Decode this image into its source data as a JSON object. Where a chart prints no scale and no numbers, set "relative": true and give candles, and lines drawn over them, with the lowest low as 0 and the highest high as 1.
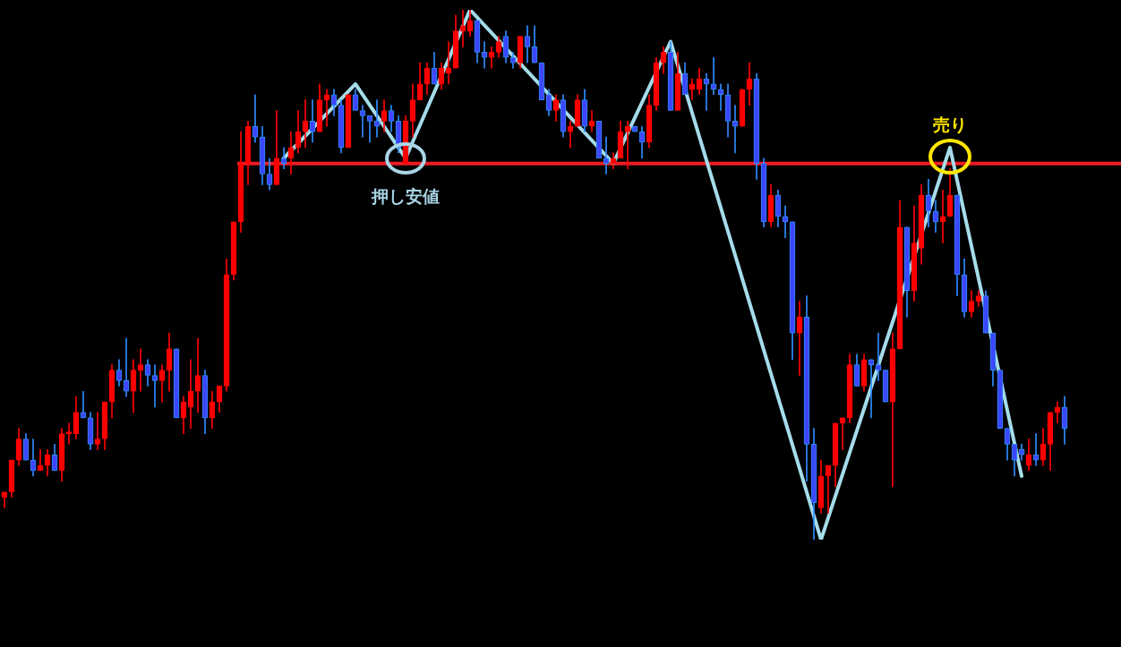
{
  "chart_data": {
    "type": "candlestick",
    "relative": true,
    "legend": false,
    "grid": false,
    "tick_labels": false,
    "categories": [
      null,
      null,
      null,
      null,
      null,
      null,
      null,
      null,
      null,
      null,
      null,
      null,
      null,
      null,
      null,
      null,
      null,
      null,
      null,
      null,
      null,
      null,
      null,
      null,
      null,
      null,
      null,
      null,
      null,
      null,
      null,
      null,
      null,
      null,
      null,
      null,
      null,
      null,
      null,
      null,
      null,
      null,
      null,
      null,
      null,
      null,
      null,
      null,
      null,
      null,
      null,
      null,
      null,
      null,
      null,
      null,
      null,
      null,
      null,
      null,
      null,
      null,
      null,
      null,
      null,
      null,
      null,
      null,
      null,
      null,
      null,
      null,
      null,
      null,
      null,
      null,
      null,
      null,
      null,
      null,
      null,
      null,
      null,
      null,
      null,
      null,
      null,
      null,
      null,
      null,
      null,
      null,
      null,
      null,
      null,
      null,
      null,
      null,
      null,
      null,
      null,
      null,
      null,
      null,
      null,
      null,
      null,
      null,
      null,
      null,
      null,
      null,
      null,
      null,
      null,
      null,
      null,
      null,
      null,
      null,
      null,
      null,
      null,
      null,
      null,
      null,
      null,
      null,
      null,
      null,
      null,
      null,
      null,
      null,
      null,
      null,
      null,
      null,
      null,
      null,
      null,
      null,
      null,
      null,
      null,
      null,
      null,
      null,
      null
    ],
    "ohlc": [
      [
        0.08,
        0.09,
        0.06,
        0.09
      ],
      [
        0.09,
        0.15,
        0.08,
        0.15
      ],
      [
        0.15,
        0.21,
        0.14,
        0.19
      ],
      [
        0.19,
        0.2,
        0.15,
        0.15
      ],
      [
        0.15,
        0.19,
        0.12,
        0.13
      ],
      [
        0.13,
        0.17,
        0.13,
        0.14
      ],
      [
        0.14,
        0.17,
        0.12,
        0.16
      ],
      [
        0.16,
        0.18,
        0.13,
        0.13
      ],
      [
        0.13,
        0.21,
        0.11,
        0.2
      ],
      [
        0.2,
        0.22,
        0.18,
        0.2
      ],
      [
        0.2,
        0.27,
        0.19,
        0.24
      ],
      [
        0.24,
        0.28,
        0.23,
        0.23
      ],
      [
        0.23,
        0.24,
        0.17,
        0.18
      ],
      [
        0.18,
        0.24,
        0.17,
        0.19
      ],
      [
        0.19,
        0.26,
        0.17,
        0.26
      ],
      [
        0.26,
        0.33,
        0.23,
        0.32
      ],
      [
        0.32,
        0.34,
        0.29,
        0.3
      ],
      [
        0.3,
        0.38,
        0.27,
        0.28
      ],
      [
        0.28,
        0.34,
        0.24,
        0.32
      ],
      [
        0.32,
        0.36,
        0.28,
        0.33
      ],
      [
        0.33,
        0.34,
        0.29,
        0.31
      ],
      [
        0.31,
        0.33,
        0.25,
        0.3
      ],
      [
        0.3,
        0.33,
        0.26,
        0.32
      ],
      [
        0.32,
        0.39,
        0.28,
        0.36
      ],
      [
        0.36,
        0.36,
        0.23,
        0.23
      ],
      [
        0.23,
        0.27,
        0.2,
        0.26
      ],
      [
        0.25,
        0.34,
        0.21,
        0.28
      ],
      [
        0.28,
        0.38,
        0.24,
        0.31
      ],
      [
        0.31,
        0.32,
        0.2,
        0.23
      ],
      [
        0.23,
        0.28,
        0.21,
        0.26
      ],
      [
        0.26,
        0.29,
        0.24,
        0.29
      ],
      [
        0.29,
        0.53,
        0.28,
        0.5
      ],
      [
        0.5,
        0.6,
        0.49,
        0.6
      ],
      [
        0.6,
        0.77,
        0.58,
        0.71
      ],
      [
        0.71,
        0.79,
        0.67,
        0.78
      ],
      [
        0.78,
        0.84,
        0.75,
        0.76
      ],
      [
        0.76,
        0.78,
        0.67,
        0.69
      ],
      [
        0.69,
        0.72,
        0.66,
        0.67
      ],
      [
        0.67,
        0.81,
        0.67,
        0.72
      ],
      [
        0.72,
        0.74,
        0.7,
        0.71
      ],
      [
        0.72,
        0.77,
        0.69,
        0.74
      ],
      [
        0.74,
        0.81,
        0.73,
        0.77
      ],
      [
        0.77,
        0.83,
        0.74,
        0.79
      ],
      [
        0.79,
        0.83,
        0.75,
        0.77
      ],
      [
        0.77,
        0.86,
        0.77,
        0.83
      ],
      [
        0.83,
        0.85,
        0.78,
        0.84
      ],
      [
        0.84,
        0.85,
        0.8,
        0.82
      ],
      [
        0.82,
        0.83,
        0.73,
        0.74
      ],
      [
        0.74,
        0.84,
        0.74,
        0.84
      ],
      [
        0.84,
        0.85,
        0.81,
        0.81
      ],
      [
        0.81,
        0.82,
        0.76,
        0.8
      ],
      [
        0.8,
        0.8,
        0.75,
        0.79
      ],
      [
        0.79,
        0.83,
        0.76,
        0.78
      ],
      [
        0.79,
        0.83,
        0.77,
        0.81
      ],
      [
        0.81,
        0.82,
        0.77,
        0.79
      ],
      [
        0.79,
        0.8,
        0.73,
        0.74
      ],
      [
        0.71,
        0.8,
        0.71,
        0.79
      ],
      [
        0.79,
        0.86,
        0.76,
        0.83
      ],
      [
        0.83,
        0.9,
        0.83,
        0.86
      ],
      [
        0.86,
        0.9,
        0.84,
        0.89
      ],
      [
        0.89,
        0.92,
        0.86,
        0.86
      ],
      [
        0.86,
        0.9,
        0.85,
        0.89
      ],
      [
        0.88,
        0.94,
        0.86,
        0.89
      ],
      [
        0.89,
        0.99,
        0.89,
        0.96
      ],
      [
        0.96,
        1,
        0.93,
        0.97
      ],
      [
        0.96,
        1,
        0.95,
        0.98
      ],
      [
        0.98,
        0.98,
        0.9,
        0.92
      ],
      [
        0.92,
        0.94,
        0.89,
        0.91
      ],
      [
        0.91,
        0.93,
        0.89,
        0.92
      ],
      [
        0.92,
        0.95,
        0.91,
        0.94
      ],
      [
        0.95,
        0.96,
        0.9,
        0.91
      ],
      [
        0.91,
        0.92,
        0.89,
        0.9
      ],
      [
        0.9,
        0.95,
        0.89,
        0.95
      ],
      [
        0.95,
        0.97,
        0.9,
        0.93
      ],
      [
        0.93,
        0.97,
        0.9,
        0.9
      ],
      [
        0.9,
        0.9,
        0.83,
        0.83
      ],
      [
        0.84,
        0.85,
        0.8,
        0.81
      ],
      [
        0.81,
        0.84,
        0.79,
        0.83
      ],
      [
        0.83,
        0.84,
        0.76,
        0.77
      ],
      [
        0.77,
        0.79,
        0.74,
        0.78
      ],
      [
        0.78,
        0.84,
        0.78,
        0.83
      ],
      [
        0.83,
        0.85,
        0.77,
        0.78
      ],
      [
        0.78,
        0.81,
        0.77,
        0.79
      ],
      [
        0.79,
        0.79,
        0.72,
        0.72
      ],
      [
        0.72,
        0.76,
        0.69,
        0.71
      ],
      [
        0.71,
        0.73,
        0.7,
        0.72
      ],
      [
        0.72,
        0.79,
        0.72,
        0.77
      ],
      [
        0.77,
        0.79,
        0.7,
        0.78
      ],
      [
        0.78,
        0.78,
        0.77,
        0.77
      ],
      [
        0.77,
        0.78,
        0.72,
        0.75
      ],
      [
        0.75,
        0.84,
        0.74,
        0.82
      ],
      [
        0.82,
        0.91,
        0.81,
        0.9
      ],
      [
        0.9,
        0.93,
        0.88,
        0.92
      ],
      [
        0.92,
        0.94,
        0.81,
        0.81
      ],
      [
        0.81,
        0.92,
        0.81,
        0.88
      ],
      [
        0.88,
        0.9,
        0.84,
        0.84
      ],
      [
        0.85,
        0.87,
        0.83,
        0.86
      ],
      [
        0.85,
        0.89,
        0.84,
        0.87
      ],
      [
        0.87,
        0.88,
        0.81,
        0.86
      ],
      [
        0.86,
        0.91,
        0.84,
        0.85
      ],
      [
        0.85,
        0.86,
        0.81,
        0.84
      ],
      [
        0.84,
        0.86,
        0.76,
        0.79
      ],
      [
        0.79,
        0.82,
        0.73,
        0.78
      ],
      [
        0.78,
        0.85,
        0.78,
        0.85
      ],
      [
        0.85,
        0.9,
        0.82,
        0.87
      ],
      [
        0.87,
        0.88,
        0.68,
        0.71
      ],
      [
        0.71,
        0.72,
        0.59,
        0.6
      ],
      [
        0.6,
        0.67,
        0.59,
        0.65
      ],
      [
        0.65,
        0.66,
        0.59,
        0.61
      ],
      [
        0.61,
        0.63,
        0.57,
        0.6
      ],
      [
        0.6,
        0.6,
        0.34,
        0.39
      ],
      [
        0.39,
        0.45,
        0.31,
        0.42
      ],
      [
        0.42,
        0.46,
        0.11,
        0.18
      ],
      [
        0.18,
        0.21,
        0,
        0.07
      ],
      [
        0.06,
        0.15,
        0.05,
        0.12
      ],
      [
        0.12,
        0.14,
        0.05,
        0.14
      ],
      [
        0.14,
        0.22,
        0.1,
        0.22
      ],
      [
        0.22,
        0.23,
        0.17,
        0.23
      ],
      [
        0.23,
        0.35,
        0.22,
        0.33
      ],
      [
        0.33,
        0.35,
        0.29,
        0.29
      ],
      [
        0.29,
        0.35,
        0.28,
        0.34
      ],
      [
        0.34,
        0.34,
        0.23,
        0.33
      ],
      [
        0.33,
        0.39,
        0.3,
        0.32
      ],
      [
        0.32,
        0.32,
        0.26,
        0.26
      ],
      [
        0.26,
        0.39,
        0.1,
        0.36
      ],
      [
        0.36,
        0.64,
        0.36,
        0.59
      ],
      [
        0.59,
        0.59,
        0.42,
        0.47
      ],
      [
        0.47,
        0.63,
        0.45,
        0.56
      ],
      [
        0.55,
        0.67,
        0.52,
        0.65
      ],
      [
        0.65,
        0.68,
        0.59,
        0.62
      ],
      [
        0.62,
        0.64,
        0.58,
        0.6
      ],
      [
        0.6,
        0.66,
        0.56,
        0.61
      ],
      [
        0.61,
        0.7,
        0.61,
        0.65
      ],
      [
        0.65,
        0.65,
        0.46,
        0.5
      ],
      [
        0.5,
        0.53,
        0.42,
        0.43
      ],
      [
        0.43,
        0.47,
        0.42,
        0.45
      ],
      [
        0.45,
        0.47,
        0.44,
        0.46
      ],
      [
        0.46,
        0.47,
        0.39,
        0.39
      ],
      [
        0.39,
        0.39,
        0.29,
        0.32
      ],
      [
        0.32,
        0.32,
        0.21,
        0.21
      ],
      [
        0.21,
        0.21,
        0.15,
        0.18
      ],
      [
        0.18,
        0.18,
        0.12,
        0.15
      ],
      [
        0.17,
        0.18,
        0.15,
        0.16
      ],
      [
        0.14,
        0.19,
        0.13,
        0.16
      ],
      [
        0.16,
        0.2,
        0.14,
        0.15
      ],
      [
        0.15,
        0.21,
        0.14,
        0.18
      ],
      [
        0.18,
        0.24,
        0.13,
        0.24
      ],
      [
        0.24,
        0.26,
        0.22,
        0.25
      ],
      [
        0.25,
        0.27,
        0.18,
        0.21
      ]
    ],
    "series": [
      {
        "type": "line",
        "color": "#a5dcea",
        "values": [
          null,
          null,
          null,
          null,
          null,
          null,
          null,
          null,
          null,
          null,
          null,
          null,
          null,
          null,
          null,
          null,
          null,
          null,
          null,
          null,
          null,
          null,
          null,
          null,
          null,
          null,
          null,
          null,
          null,
          null,
          null,
          null,
          null,
          null,
          null,
          null,
          null,
          null,
          null,
          0.72,
          null,
          null,
          null,
          null,
          null,
          null,
          null,
          null,
          null,
          0.86,
          null,
          null,
          null,
          null,
          null,
          null,
          0.72,
          null,
          null,
          null,
          null,
          null,
          null,
          null,
          null,
          1,
          null,
          null,
          null,
          null,
          null,
          null,
          null,
          null,
          null,
          null,
          null,
          null,
          null,
          null,
          null,
          null,
          null,
          null,
          null,
          0.71,
          null,
          null,
          null,
          null,
          null,
          null,
          null,
          0.94,
          null,
          null,
          null,
          null,
          null,
          null,
          null,
          null,
          null,
          null,
          null,
          null,
          null,
          null,
          null,
          null,
          null,
          null,
          null,
          null,
          0,
          null,
          null,
          null,
          null,
          null,
          null,
          null,
          null,
          null,
          null,
          null,
          null,
          null,
          null,
          null,
          null,
          null,
          0.74,
          null,
          null,
          null,
          null,
          null,
          null,
          null,
          null,
          null,
          0.12,
          null,
          null,
          null,
          null,
          null,
          null
        ]
      }
    ],
    "ref_lines": [
      {
        "axis": "y",
        "value": 0.71,
        "color": "#ee1c24"
      }
    ],
    "annotations": [
      "押し安値",
      "売り"
    ]
  }
}
